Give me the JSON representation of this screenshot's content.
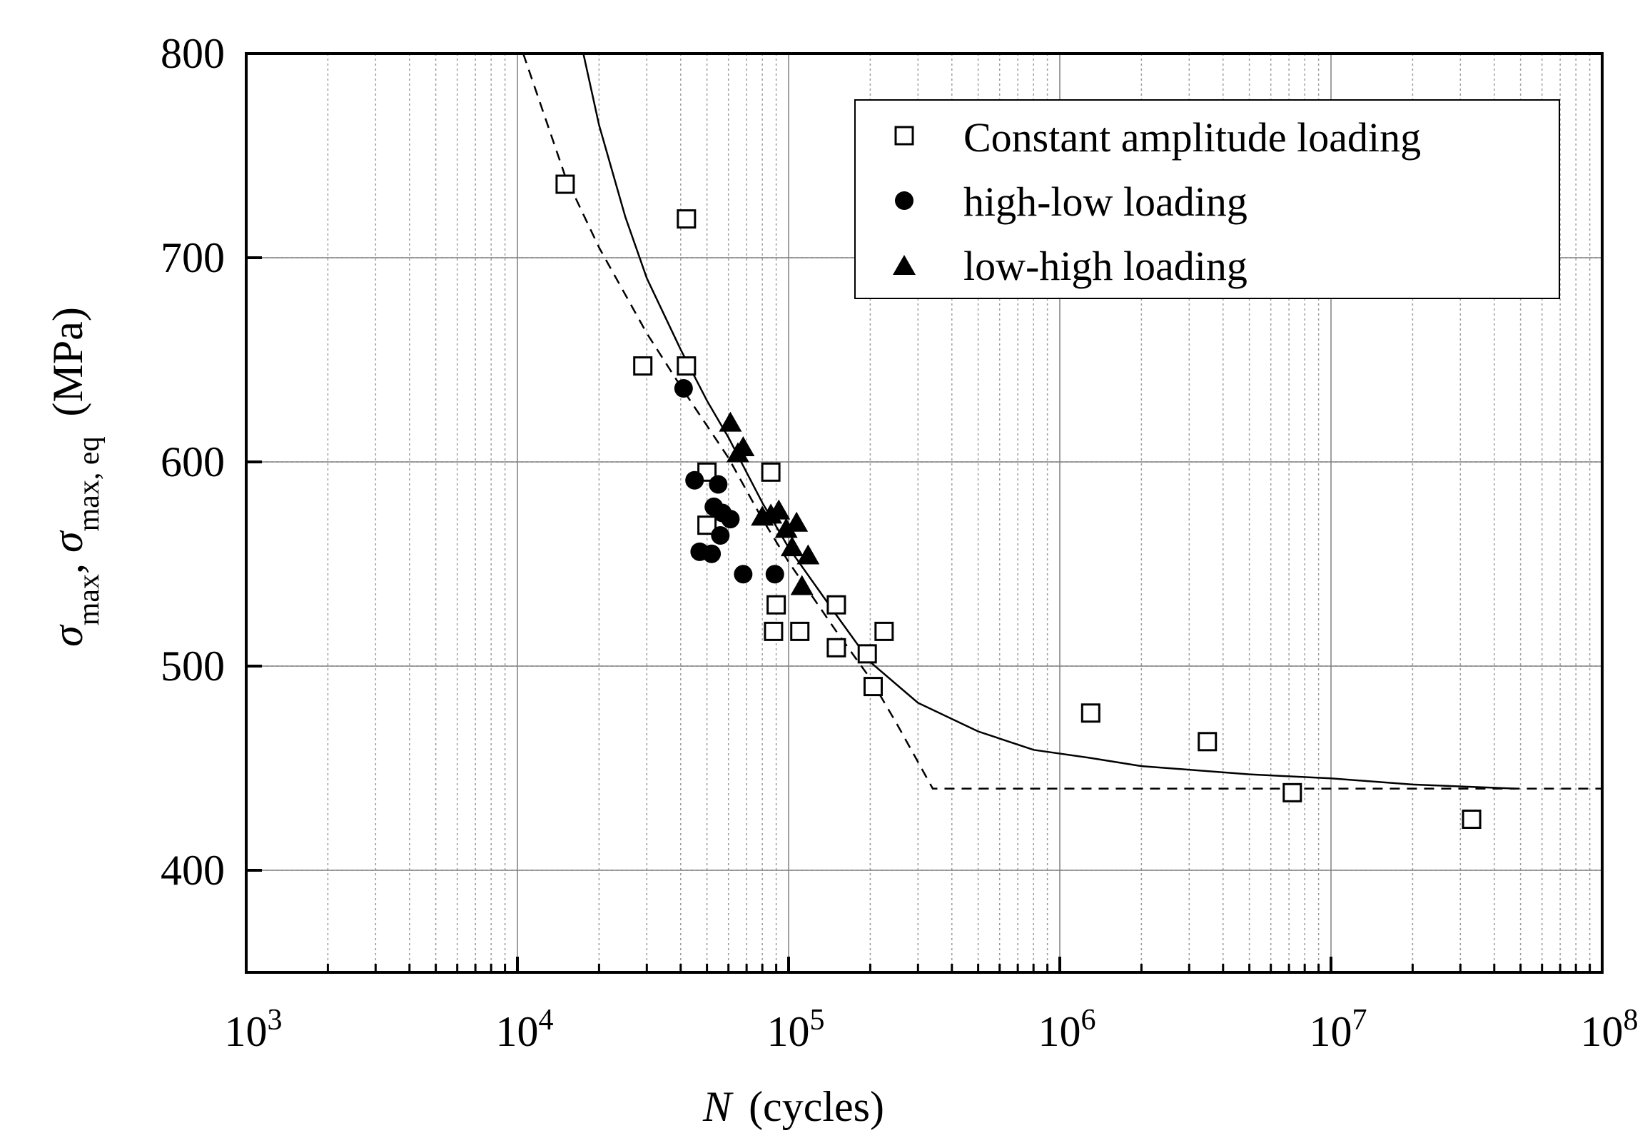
{
  "chart_data": {
    "type": "scatter",
    "title": "",
    "x_scale": "log",
    "xlim": [
      1000,
      100000000
    ],
    "ylim": [
      350,
      800
    ],
    "x_ticks": [
      {
        "value": 1000,
        "base": "10",
        "exp": "3"
      },
      {
        "value": 10000,
        "base": "10",
        "exp": "4"
      },
      {
        "value": 100000,
        "base": "10",
        "exp": "5"
      },
      {
        "value": 1000000,
        "base": "10",
        "exp": "6"
      },
      {
        "value": 10000000,
        "base": "10",
        "exp": "7"
      },
      {
        "value": 100000000,
        "base": "10",
        "exp": "8"
      }
    ],
    "y_ticks": [
      {
        "value": 400,
        "label": "400"
      },
      {
        "value": 500,
        "label": "500"
      },
      {
        "value": 600,
        "label": "600"
      },
      {
        "value": 700,
        "label": "700"
      },
      {
        "value": 800,
        "label": "800"
      }
    ],
    "xlabel": {
      "symbol": "N",
      "unit": "(cycles)"
    },
    "ylabel": {
      "sym1": "σ",
      "sub1": "max",
      "sep": ", ",
      "sym2": "σ",
      "sub2": "max, eq",
      "unit": "(MPa)"
    },
    "grid": true,
    "legend_position": "top-right",
    "series": [
      {
        "name": "Constant amplitude loading",
        "marker": "open-square",
        "points": [
          [
            15000,
            736
          ],
          [
            42000,
            719
          ],
          [
            29000,
            647
          ],
          [
            42000,
            647
          ],
          [
            50000,
            595
          ],
          [
            86000,
            595
          ],
          [
            50000,
            569
          ],
          [
            90000,
            530
          ],
          [
            150000,
            530
          ],
          [
            88000,
            517
          ],
          [
            110000,
            517
          ],
          [
            225000,
            517
          ],
          [
            150000,
            509
          ],
          [
            195000,
            506
          ],
          [
            205000,
            490
          ],
          [
            1300000,
            477
          ],
          [
            3500000,
            463
          ],
          [
            7200000,
            438
          ],
          [
            33000000,
            425
          ]
        ]
      },
      {
        "name": "high-low loading",
        "marker": "filled-circle",
        "points": [
          [
            41000,
            636
          ],
          [
            45000,
            591
          ],
          [
            55000,
            589
          ],
          [
            53000,
            578
          ],
          [
            57000,
            575
          ],
          [
            61000,
            572
          ],
          [
            56000,
            564
          ],
          [
            47000,
            556
          ],
          [
            52000,
            555
          ],
          [
            68000,
            545
          ],
          [
            89000,
            545
          ]
        ]
      },
      {
        "name": "low-high loading",
        "marker": "filled-triangle",
        "points": [
          [
            61000,
            619
          ],
          [
            65000,
            604
          ],
          [
            68000,
            607
          ],
          [
            80000,
            573
          ],
          [
            86000,
            574
          ],
          [
            92000,
            576
          ],
          [
            98000,
            567
          ],
          [
            107000,
            570
          ],
          [
            103000,
            558
          ],
          [
            118000,
            554
          ],
          [
            112000,
            539
          ]
        ]
      }
    ],
    "fit_lines": [
      {
        "name": "solid-fit",
        "style": "solid",
        "points": [
          [
            17500,
            800
          ],
          [
            20000,
            765
          ],
          [
            25000,
            720
          ],
          [
            30000,
            690
          ],
          [
            40000,
            655
          ],
          [
            50000,
            630
          ],
          [
            60000,
            612
          ],
          [
            80000,
            580
          ],
          [
            100000,
            558
          ],
          [
            150000,
            525
          ],
          [
            200000,
            502
          ],
          [
            300000,
            482
          ],
          [
            500000,
            468
          ],
          [
            800000,
            459
          ],
          [
            1300000,
            455
          ],
          [
            2000000,
            451
          ],
          [
            5000000,
            447
          ],
          [
            10000000,
            445
          ],
          [
            20000000,
            442
          ],
          [
            48000000,
            440
          ]
        ]
      },
      {
        "name": "dashed-fit",
        "style": "dashed",
        "points": [
          [
            10500,
            800
          ],
          [
            15000,
            740
          ],
          [
            20000,
            705
          ],
          [
            30000,
            663
          ],
          [
            40000,
            637
          ],
          [
            60000,
            602
          ],
          [
            80000,
            572
          ],
          [
            100000,
            551
          ],
          [
            150000,
            517
          ],
          [
            200000,
            494
          ],
          [
            250000,
            472
          ],
          [
            340000,
            440
          ],
          [
            100000000,
            440
          ]
        ]
      }
    ]
  }
}
